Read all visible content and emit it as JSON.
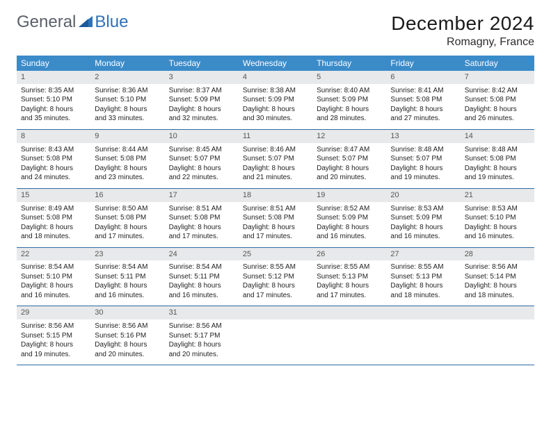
{
  "logo": {
    "part1": "General",
    "part2": "Blue"
  },
  "title": "December 2024",
  "location": "Romagny, France",
  "colors": {
    "header_bg": "#3b8bc9",
    "header_text": "#ffffff",
    "daynum_bg": "#e8e9ea",
    "row_border": "#2f6aa3",
    "body_text": "#222222",
    "logo_gray": "#5a6069",
    "logo_blue": "#2f71b8"
  },
  "weekdays": [
    "Sunday",
    "Monday",
    "Tuesday",
    "Wednesday",
    "Thursday",
    "Friday",
    "Saturday"
  ],
  "weeks": [
    [
      {
        "n": "1",
        "sr": "8:35 AM",
        "ss": "5:10 PM",
        "dl": "8 hours and 35 minutes."
      },
      {
        "n": "2",
        "sr": "8:36 AM",
        "ss": "5:10 PM",
        "dl": "8 hours and 33 minutes."
      },
      {
        "n": "3",
        "sr": "8:37 AM",
        "ss": "5:09 PM",
        "dl": "8 hours and 32 minutes."
      },
      {
        "n": "4",
        "sr": "8:38 AM",
        "ss": "5:09 PM",
        "dl": "8 hours and 30 minutes."
      },
      {
        "n": "5",
        "sr": "8:40 AM",
        "ss": "5:09 PM",
        "dl": "8 hours and 28 minutes."
      },
      {
        "n": "6",
        "sr": "8:41 AM",
        "ss": "5:08 PM",
        "dl": "8 hours and 27 minutes."
      },
      {
        "n": "7",
        "sr": "8:42 AM",
        "ss": "5:08 PM",
        "dl": "8 hours and 26 minutes."
      }
    ],
    [
      {
        "n": "8",
        "sr": "8:43 AM",
        "ss": "5:08 PM",
        "dl": "8 hours and 24 minutes."
      },
      {
        "n": "9",
        "sr": "8:44 AM",
        "ss": "5:08 PM",
        "dl": "8 hours and 23 minutes."
      },
      {
        "n": "10",
        "sr": "8:45 AM",
        "ss": "5:07 PM",
        "dl": "8 hours and 22 minutes."
      },
      {
        "n": "11",
        "sr": "8:46 AM",
        "ss": "5:07 PM",
        "dl": "8 hours and 21 minutes."
      },
      {
        "n": "12",
        "sr": "8:47 AM",
        "ss": "5:07 PM",
        "dl": "8 hours and 20 minutes."
      },
      {
        "n": "13",
        "sr": "8:48 AM",
        "ss": "5:07 PM",
        "dl": "8 hours and 19 minutes."
      },
      {
        "n": "14",
        "sr": "8:48 AM",
        "ss": "5:08 PM",
        "dl": "8 hours and 19 minutes."
      }
    ],
    [
      {
        "n": "15",
        "sr": "8:49 AM",
        "ss": "5:08 PM",
        "dl": "8 hours and 18 minutes."
      },
      {
        "n": "16",
        "sr": "8:50 AM",
        "ss": "5:08 PM",
        "dl": "8 hours and 17 minutes."
      },
      {
        "n": "17",
        "sr": "8:51 AM",
        "ss": "5:08 PM",
        "dl": "8 hours and 17 minutes."
      },
      {
        "n": "18",
        "sr": "8:51 AM",
        "ss": "5:08 PM",
        "dl": "8 hours and 17 minutes."
      },
      {
        "n": "19",
        "sr": "8:52 AM",
        "ss": "5:09 PM",
        "dl": "8 hours and 16 minutes."
      },
      {
        "n": "20",
        "sr": "8:53 AM",
        "ss": "5:09 PM",
        "dl": "8 hours and 16 minutes."
      },
      {
        "n": "21",
        "sr": "8:53 AM",
        "ss": "5:10 PM",
        "dl": "8 hours and 16 minutes."
      }
    ],
    [
      {
        "n": "22",
        "sr": "8:54 AM",
        "ss": "5:10 PM",
        "dl": "8 hours and 16 minutes."
      },
      {
        "n": "23",
        "sr": "8:54 AM",
        "ss": "5:11 PM",
        "dl": "8 hours and 16 minutes."
      },
      {
        "n": "24",
        "sr": "8:54 AM",
        "ss": "5:11 PM",
        "dl": "8 hours and 16 minutes."
      },
      {
        "n": "25",
        "sr": "8:55 AM",
        "ss": "5:12 PM",
        "dl": "8 hours and 17 minutes."
      },
      {
        "n": "26",
        "sr": "8:55 AM",
        "ss": "5:13 PM",
        "dl": "8 hours and 17 minutes."
      },
      {
        "n": "27",
        "sr": "8:55 AM",
        "ss": "5:13 PM",
        "dl": "8 hours and 18 minutes."
      },
      {
        "n": "28",
        "sr": "8:56 AM",
        "ss": "5:14 PM",
        "dl": "8 hours and 18 minutes."
      }
    ],
    [
      {
        "n": "29",
        "sr": "8:56 AM",
        "ss": "5:15 PM",
        "dl": "8 hours and 19 minutes."
      },
      {
        "n": "30",
        "sr": "8:56 AM",
        "ss": "5:16 PM",
        "dl": "8 hours and 20 minutes."
      },
      {
        "n": "31",
        "sr": "8:56 AM",
        "ss": "5:17 PM",
        "dl": "8 hours and 20 minutes."
      },
      null,
      null,
      null,
      null
    ]
  ],
  "labels": {
    "sunrise": "Sunrise:",
    "sunset": "Sunset:",
    "daylight": "Daylight:"
  }
}
